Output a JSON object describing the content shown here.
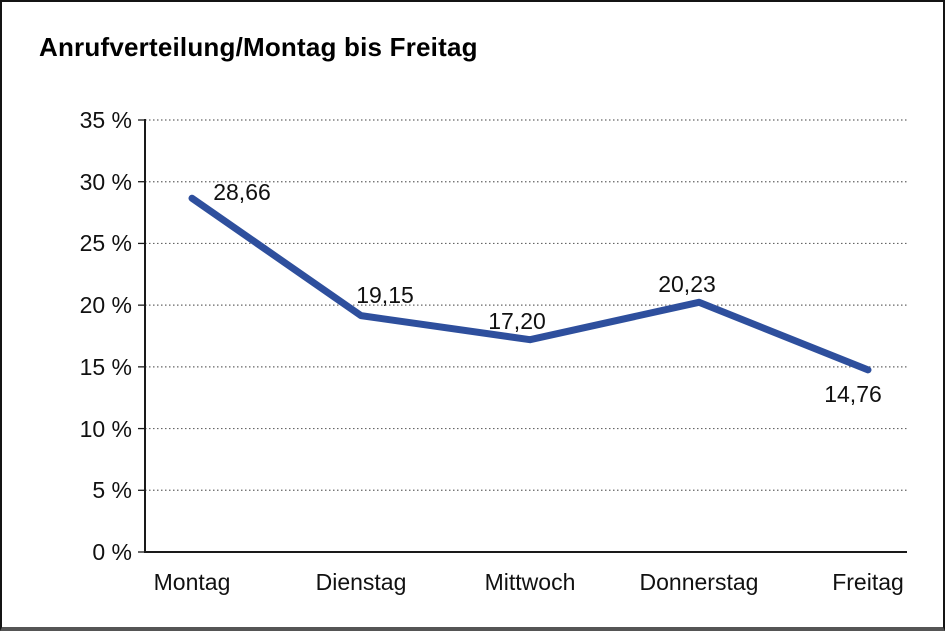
{
  "chart_data": {
    "type": "line",
    "title": "Anrufverteilung/Montag bis Freitag",
    "categories": [
      "Montag",
      "Dienstag",
      "Mittwoch",
      "Donnerstag",
      "Freitag"
    ],
    "values": [
      28.66,
      19.15,
      17.2,
      20.23,
      14.76
    ],
    "value_labels": [
      "28,66",
      "19,15",
      "17,20",
      "20,23",
      "14,76"
    ],
    "y_tick_labels": [
      "0 %",
      "5 %",
      "10 %",
      "15 %",
      "20 %",
      "25 %",
      "30 %",
      "35 %"
    ],
    "ylim": [
      0,
      35
    ],
    "y_step": 5,
    "xlabel": "",
    "ylabel": "",
    "grid": "horizontal-dotted",
    "legend": "none",
    "line_color": "#2e4f9d",
    "axis_color": "#1a1a1a",
    "grid_color": "#666666"
  }
}
